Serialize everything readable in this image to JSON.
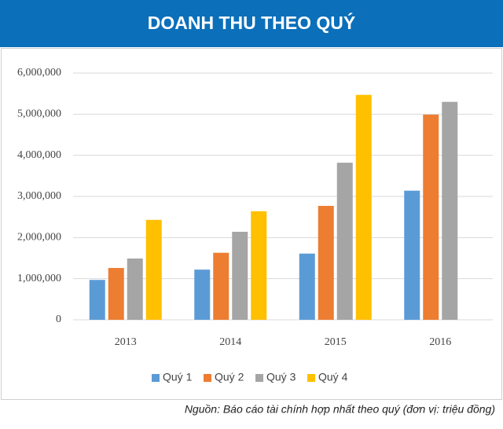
{
  "chart_data": {
    "type": "bar",
    "title": "DOANH THU THEO QUÝ",
    "categories": [
      "2013",
      "2014",
      "2015",
      "2016"
    ],
    "series": [
      {
        "name": "Quý 1",
        "color": "#5b9bd5",
        "values": [
          970000,
          1220000,
          1610000,
          3140000
        ]
      },
      {
        "name": "Quý 2",
        "color": "#ed7d31",
        "values": [
          1260000,
          1630000,
          2770000,
          4990000
        ]
      },
      {
        "name": "Quý 3",
        "color": "#a5a5a5",
        "values": [
          1490000,
          2140000,
          3820000,
          5300000
        ]
      },
      {
        "name": "Quý 4",
        "color": "#ffc000",
        "values": [
          2430000,
          2640000,
          5470000,
          null
        ]
      }
    ],
    "ylim": [
      0,
      6000000
    ],
    "yticks": [
      0,
      {
        "value": 1000000,
        "label": "1,000,000"
      },
      {
        "value": 2000000,
        "label": "2,000,000"
      },
      {
        "value": 3000000,
        "label": "3,000,000"
      },
      {
        "value": 4000000,
        "label": "4,000,000"
      },
      {
        "value": 5000000,
        "label": "5,000,000"
      },
      {
        "value": 6000000,
        "label": "6,000,000"
      }
    ],
    "grid": true,
    "legend": "bottom",
    "note": "Nguồn: Báo cáo tài chính hợp nhất theo quý (đơn vị: triệu đồng)"
  }
}
